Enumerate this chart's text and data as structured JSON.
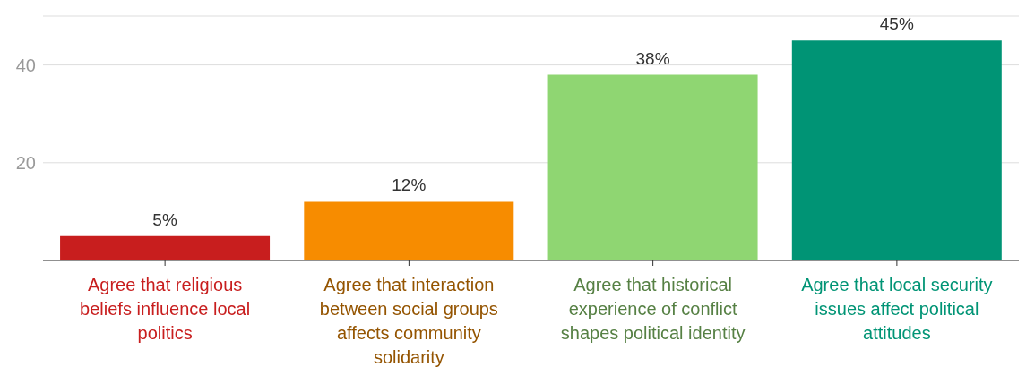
{
  "chart_data": {
    "type": "bar",
    "categories": [
      "Agree that religious beliefs influence local politics",
      "Agree that interaction between social groups affects community solidarity",
      "Agree that historical experience of conflict shapes political identity",
      "Agree that local security issues affect political attitudes"
    ],
    "values": [
      5,
      12,
      38,
      45
    ],
    "colors": [
      "#c81e1e",
      "#f78c00",
      "#8fd672",
      "#009475"
    ],
    "value_labels": [
      "5%",
      "12%",
      "38%",
      "45%"
    ],
    "ylim": [
      0,
      50
    ],
    "yticks": [
      {
        "value": 0,
        "label": null
      },
      20,
      40
    ],
    "grid": "y"
  }
}
